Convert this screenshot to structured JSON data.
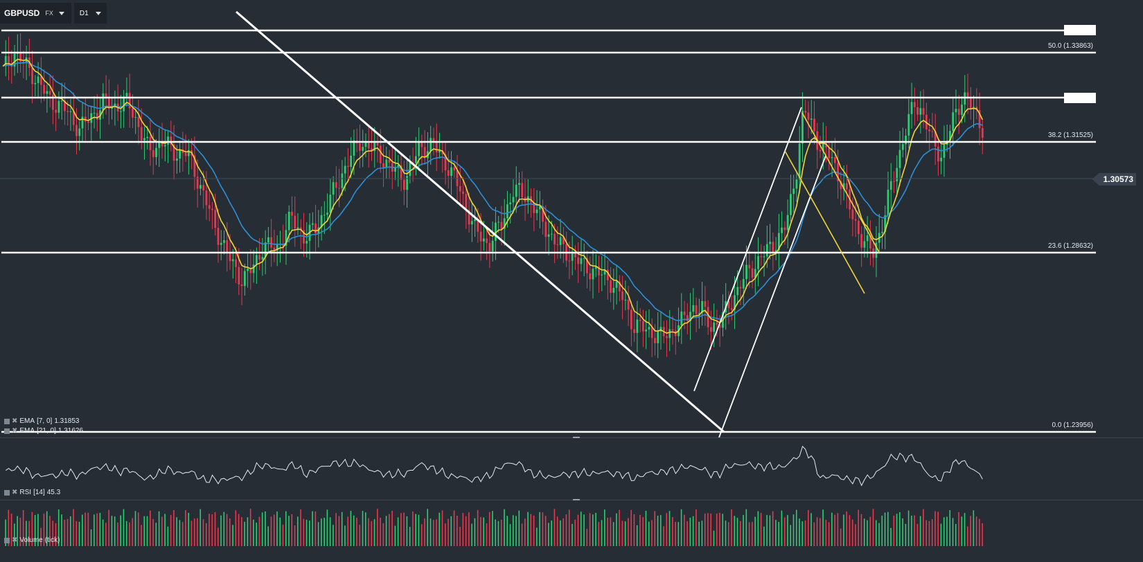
{
  "symbol": {
    "name": "GBPUSD",
    "market": "FX"
  },
  "timeframe": "D1",
  "last_price": "1.30573",
  "fib_levels": [
    {
      "label": "50.0 (1.33863)"
    },
    {
      "label": "38.2 (1.31525)"
    },
    {
      "label": "23.6 (1.28632)"
    },
    {
      "label": "0.0 (1.23956)"
    }
  ],
  "indicators": {
    "ema_fast": {
      "name": "EMA",
      "params": "[7, 0]",
      "value": "1.31853"
    },
    "ema_slow": {
      "name": "EMA",
      "params": "[21, 0]",
      "value": "1.31626"
    },
    "rsi": {
      "name": "RSI",
      "params": "[14]",
      "value": "45.3"
    },
    "volume": {
      "name": "Volume",
      "params": "(tick)"
    }
  },
  "colors": {
    "background": "#262d35",
    "bull_candle": "#2ecc71",
    "bear_candle": "#e53950",
    "ema_fast": "#f2d43b",
    "ema_slow": "#2e8fd6",
    "drawing": "#ffffff"
  },
  "icons": {
    "symbol_dropdown": "caret-down-icon",
    "timeframe_dropdown": "caret-down-icon",
    "indicator_remove": "close-icon"
  }
}
